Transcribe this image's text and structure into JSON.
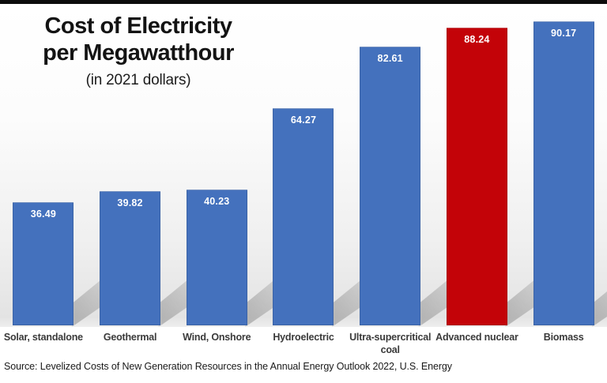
{
  "page": {
    "title_line1": "Cost of Electricity",
    "title_line2": "per Megawatthour",
    "subtitle": "(in 2021 dollars)",
    "source": "Source: Levelized Costs of New Generation Resources in the Annual Energy Outlook 2022, U.S. Energy"
  },
  "colors": {
    "bar_default": "#4471BD",
    "bar_highlight": "#C30308",
    "value_label_text": "#ffffff",
    "category_label_text": "#3a3a3a",
    "top_strip": "#0d0d0d"
  },
  "chart_data": {
    "type": "bar",
    "title": "Cost of Electricity per Megawatthour",
    "subtitle": "(in 2021 dollars)",
    "categories": [
      "Solar, standalone",
      "Geothermal",
      "Wind, Onshore",
      "Hydroelectric",
      "Ultra-supercritical coal",
      "Advanced nuclear",
      "Biomass"
    ],
    "values": [
      36.49,
      39.82,
      40.23,
      64.27,
      82.61,
      88.24,
      90.17
    ],
    "value_labels": [
      "36.49",
      "39.82",
      "40.23",
      "64.27",
      "82.61",
      "88.24",
      "90.17"
    ],
    "bar_colors": [
      "#4471BD",
      "#4471BD",
      "#4471BD",
      "#4471BD",
      "#4471BD",
      "#C30308",
      "#4471BD"
    ],
    "highlighted_category": "Advanced nuclear",
    "ylim": [
      0,
      95
    ],
    "grid": false,
    "legend": false,
    "value_labels_position": "inside-top",
    "source": "Source: Levelized Costs of New Generation Resources in the Annual Energy Outlook 2022, U.S. Energy"
  }
}
